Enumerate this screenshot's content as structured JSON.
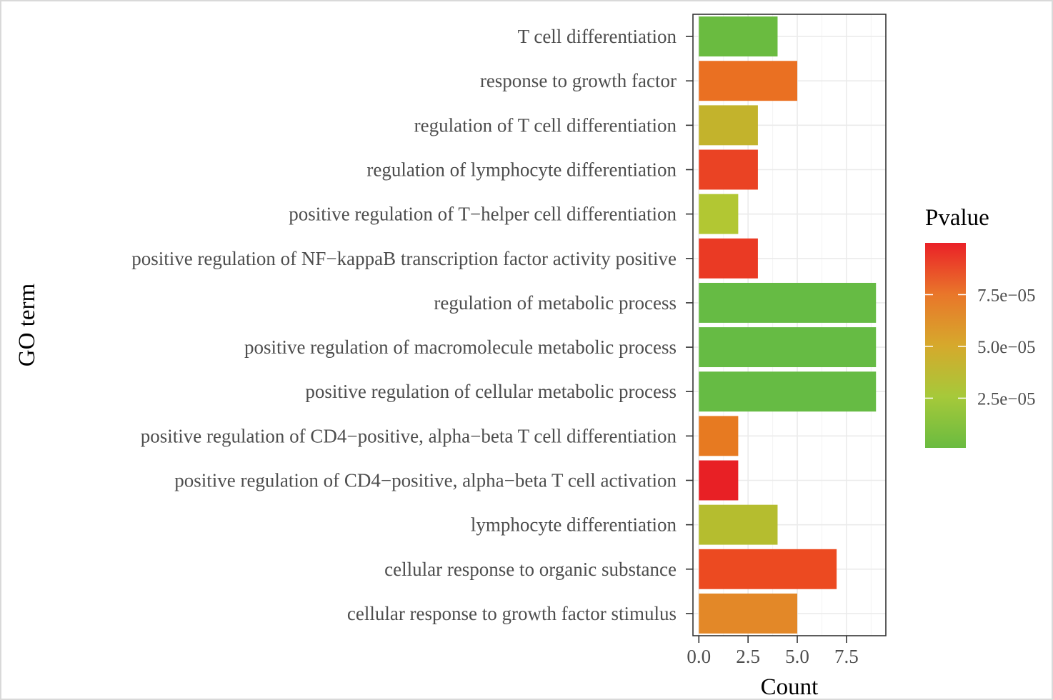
{
  "chart_data": {
    "type": "bar",
    "orientation": "horizontal",
    "xlabel": "Count",
    "ylabel": "GO term",
    "xlim": [
      -0.3,
      9.5
    ],
    "x_ticks": [
      0,
      2.5,
      5,
      7.5
    ],
    "x_tick_labels": [
      "0.0",
      "2.5",
      "5.0",
      "7.5"
    ],
    "grid": true,
    "categories": [
      "T cell differentiation",
      "response to growth factor",
      "regulation of T cell differentiation",
      "regulation of lymphocyte differentiation",
      "positive regulation of T−helper cell differentiation",
      "positive regulation of NF−kappaB transcription factor activity positive",
      "regulation of metabolic process",
      "positive regulation of macromolecule metabolic process",
      "positive regulation of cellular metabolic process",
      "positive regulation of CD4−positive, alpha−beta T cell differentiation",
      "positive regulation of CD4−positive, alpha−beta T cell activation",
      "lymphocyte differentiation",
      "cellular response to organic substance",
      "cellular response to growth factor stimulus"
    ],
    "values": [
      4,
      5,
      3,
      3,
      2,
      3,
      9,
      9,
      9,
      2,
      2,
      4,
      7,
      5
    ],
    "pvalues": [
      2e-06,
      8e-05,
      5e-05,
      9e-05,
      3e-05,
      9.5e-05,
      1e-06,
      1e-06,
      1e-06,
      7e-05,
      0.0001,
      4e-05,
      9e-05,
      7e-05
    ],
    "colors": [
      "#6abb40",
      "#ea7022",
      "#c3b32c",
      "#ea4324",
      "#b2c733",
      "#ea3a24",
      "#66bb44",
      "#66bb44",
      "#66bb44",
      "#e77a21",
      "#e82025",
      "#b5bd2f",
      "#ec4a21",
      "#e38828"
    ],
    "legend": {
      "title": "Pvalue",
      "position": "right",
      "type": "colorbar",
      "range": [
        1e-06,
        0.0001
      ],
      "ticks": [
        2.5e-05,
        5e-05,
        7.5e-05
      ],
      "tick_labels": [
        "2.5e−05",
        "5.0e−05",
        "7.5e−05"
      ],
      "gradient": [
        "#6abb40",
        "#a6c93a",
        "#d6a92c",
        "#e9762a",
        "#ea2128"
      ]
    }
  }
}
